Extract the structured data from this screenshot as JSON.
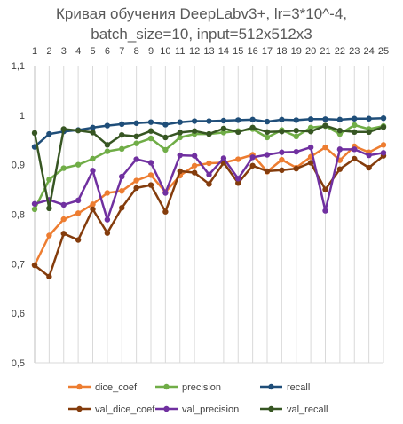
{
  "chart_data": {
    "type": "line",
    "title_lines": [
      "Кривая обучения DeepLabv3+, lr=3*10^-4,",
      "batch_size=10, input=512x512x3"
    ],
    "x": [
      1,
      2,
      3,
      4,
      5,
      6,
      7,
      8,
      9,
      10,
      11,
      12,
      13,
      14,
      15,
      16,
      17,
      18,
      19,
      20,
      21,
      22,
      23,
      24,
      25
    ],
    "x_tick_labels": [
      "1",
      "2",
      "3",
      "4",
      "5",
      "6",
      "7",
      "8",
      "9",
      "10",
      "11",
      "12",
      "13",
      "14",
      "15",
      "16",
      "17",
      "18",
      "19",
      "20",
      "21",
      "22",
      "23",
      "24",
      "25"
    ],
    "ylim": [
      0.5,
      1.1
    ],
    "y_ticks": [
      0.5,
      0.6,
      0.7,
      0.8,
      0.9,
      1.0,
      1.1
    ],
    "y_tick_labels": [
      "0,5",
      "0,6",
      "0,7",
      "0,8",
      "0,9",
      "1",
      "1,1"
    ],
    "x_axis_position": "top",
    "grid": "vertical",
    "legend_position": "bottom",
    "series": [
      {
        "name": "dice_coef",
        "color": "#ED7D31",
        "values": [
          0.697,
          0.757,
          0.79,
          0.802,
          0.82,
          0.843,
          0.847,
          0.868,
          0.879,
          0.845,
          0.878,
          0.898,
          0.903,
          0.904,
          0.911,
          0.92,
          0.886,
          0.91,
          0.894,
          0.916,
          0.935,
          0.909,
          0.937,
          0.925,
          0.94
        ]
      },
      {
        "name": "precision",
        "color": "#70AD47",
        "values": [
          0.81,
          0.87,
          0.893,
          0.9,
          0.912,
          0.927,
          0.932,
          0.943,
          0.953,
          0.93,
          0.955,
          0.962,
          0.962,
          0.965,
          0.968,
          0.972,
          0.955,
          0.97,
          0.957,
          0.975,
          0.978,
          0.962,
          0.98,
          0.972,
          0.978
        ]
      },
      {
        "name": "recall",
        "color": "#1F4E79",
        "values": [
          0.936,
          0.962,
          0.967,
          0.97,
          0.975,
          0.979,
          0.982,
          0.984,
          0.986,
          0.981,
          0.986,
          0.988,
          0.988,
          0.989,
          0.99,
          0.991,
          0.987,
          0.991,
          0.99,
          0.992,
          0.992,
          0.991,
          0.993,
          0.993,
          0.994
        ]
      },
      {
        "name": "val_dice_coef",
        "color": "#843C0C",
        "values": [
          0.697,
          0.674,
          0.761,
          0.748,
          0.81,
          0.762,
          0.813,
          0.853,
          0.859,
          0.805,
          0.887,
          0.884,
          0.861,
          0.904,
          0.863,
          0.898,
          0.887,
          0.889,
          0.892,
          0.904,
          0.85,
          0.891,
          0.912,
          0.894,
          0.918
        ]
      },
      {
        "name": "val_precision",
        "color": "#7030A0",
        "values": [
          0.821,
          0.829,
          0.819,
          0.828,
          0.888,
          0.789,
          0.876,
          0.911,
          0.904,
          0.843,
          0.919,
          0.918,
          0.88,
          0.913,
          0.872,
          0.915,
          0.92,
          0.925,
          0.926,
          0.935,
          0.807,
          0.931,
          0.931,
          0.919,
          0.924
        ]
      },
      {
        "name": "val_recall",
        "color": "#375623",
        "values": [
          0.964,
          0.812,
          0.972,
          0.969,
          0.965,
          0.94,
          0.96,
          0.957,
          0.968,
          0.955,
          0.965,
          0.968,
          0.962,
          0.973,
          0.966,
          0.975,
          0.966,
          0.967,
          0.969,
          0.967,
          0.979,
          0.969,
          0.966,
          0.966,
          0.976
        ]
      }
    ]
  }
}
